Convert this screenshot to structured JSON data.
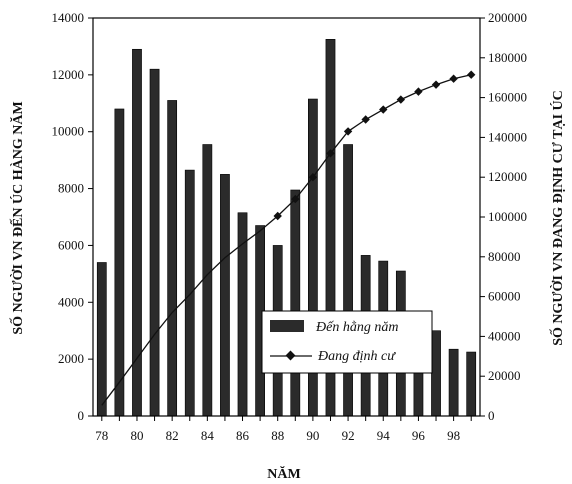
{
  "chart_data": {
    "type": "bar",
    "xlabel": "NĂM",
    "ylabel_left": "SỐ NGƯỜI VN ĐẾN ÚC HÀNG NĂM",
    "ylabel_right": "SỐ NGƯỜI VN ĐANG ĐỊNH CƯ TẠI ÚC",
    "x": [
      78,
      79,
      80,
      81,
      82,
      83,
      84,
      85,
      86,
      87,
      88,
      89,
      90,
      91,
      92,
      93,
      94,
      95,
      96,
      97,
      98,
      99
    ],
    "x_tick_labels": [
      "78",
      "80",
      "82",
      "84",
      "86",
      "88",
      "90",
      "92",
      "94",
      "96",
      "98"
    ],
    "ylim_left": [
      0,
      14000
    ],
    "y_ticks_left": [
      "0",
      "2000",
      "4000",
      "6000",
      "8000",
      "10000",
      "12000",
      "14000"
    ],
    "ylim_right": [
      0,
      200000
    ],
    "y_ticks_right": [
      "0",
      "20000",
      "40000",
      "60000",
      "80000",
      "100000",
      "120000",
      "140000",
      "160000",
      "180000",
      "200000"
    ],
    "legend_position": "center-right",
    "series": [
      {
        "name": "Đến hằng năm",
        "type": "bar",
        "axis": "left",
        "color": "#2b2b2b",
        "values": [
          5400,
          10800,
          12900,
          12200,
          11100,
          8650,
          9550,
          8500,
          7150,
          6700,
          6000,
          7950,
          11150,
          13250,
          9550,
          5650,
          5450,
          5100,
          3500,
          3000,
          2350,
          2250
        ]
      },
      {
        "name": "Đang định cư",
        "type": "line",
        "axis": "right",
        "color": "#111111",
        "marker": "diamond",
        "values": [
          5400,
          17000,
          29000,
          41000,
          52000,
          61000,
          71000,
          79500,
          86500,
          93000,
          100500,
          109000,
          120000,
          132000,
          143000,
          149000,
          154000,
          159000,
          163000,
          166500,
          169500,
          171500
        ]
      }
    ]
  }
}
